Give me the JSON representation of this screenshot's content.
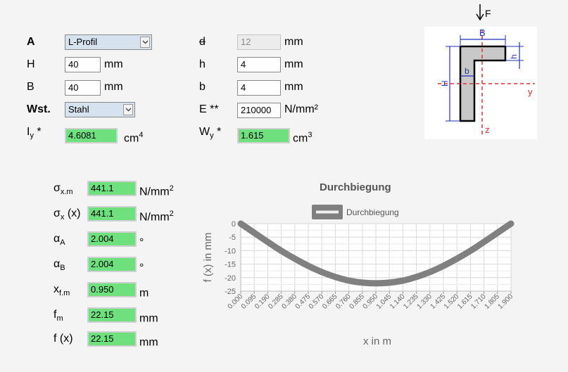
{
  "colors": {
    "green_field": "#6fe07e",
    "select_bg": "#d6e2ee",
    "curve": "#808080",
    "diagram_red": "#e03030",
    "diagram_blue": "#2030c0"
  },
  "params": {
    "A": {
      "label": "A",
      "value": "L-Profil"
    },
    "H": {
      "label": "H",
      "value": "40",
      "unit": "mm"
    },
    "B": {
      "label": "B",
      "value": "40",
      "unit": "mm"
    },
    "Wst": {
      "label": "Wst.",
      "value": "Stahl"
    },
    "Iy": {
      "label": "I",
      "sub": "y",
      "star": " *",
      "value": "4.6081",
      "unit": "cm",
      "unit_sup": "4"
    },
    "d": {
      "label": "d",
      "value": "12",
      "unit": "mm"
    },
    "h": {
      "label": "h",
      "value": "4",
      "unit": "mm"
    },
    "b": {
      "label": "b",
      "value": "4",
      "unit": "mm"
    },
    "E": {
      "label": "E **",
      "value": "210000",
      "unit": "N/mm²"
    },
    "Wy": {
      "label": "W",
      "sub": "y",
      "star": " *",
      "value": "1.615",
      "unit": "cm",
      "unit_sup": "3"
    }
  },
  "diagram": {
    "F": "F",
    "B": "B",
    "h": "h",
    "b": "b",
    "H": "H",
    "y": "y",
    "z": "z"
  },
  "results": [
    {
      "sym": "σ",
      "sub": "x.m",
      "suffix": "",
      "value": "441.1",
      "unit": "N/mm",
      "unit_sup": "2"
    },
    {
      "sym": "σ",
      "sub": "x",
      "suffix": " (x)",
      "value": "441.1",
      "unit": "N/mm",
      "unit_sup": "2"
    },
    {
      "sym": "α",
      "sub": "A",
      "suffix": "",
      "value": "2.004",
      "unit": "°",
      "unit_sup": ""
    },
    {
      "sym": "α",
      "sub": "B",
      "suffix": "",
      "value": "2.004",
      "unit": "°",
      "unit_sup": ""
    },
    {
      "sym": "x",
      "sub": "f.m",
      "suffix": "",
      "value": "0.950",
      "unit": "m",
      "unit_sup": ""
    },
    {
      "sym": "f",
      "sub": "m",
      "suffix": "",
      "value": "22.15",
      "unit": "mm",
      "unit_sup": ""
    },
    {
      "sym": "f (x)",
      "sub": "",
      "suffix": "",
      "value": "22.15",
      "unit": "mm",
      "unit_sup": ""
    }
  ],
  "chart_data": {
    "type": "line",
    "title": "Durchbiegung",
    "xlabel": "x in m",
    "ylabel": "f (x) in mm",
    "legend": {
      "position": "top",
      "entries": [
        "Durchbiegung"
      ]
    },
    "grid": true,
    "ylim": [
      -25,
      0
    ],
    "xlim": [
      0,
      1.9
    ],
    "x_ticks": [
      "0.000",
      "0.095",
      "0.190",
      "0.285",
      "0.380",
      "0.475",
      "0.570",
      "0.665",
      "0.760",
      "0.855",
      "0.950",
      "1.045",
      "1.140",
      "1.235",
      "1.330",
      "1.425",
      "1.520",
      "1.615",
      "1.710",
      "1.805",
      "1.900"
    ],
    "y_ticks": [
      "0",
      "-5",
      "-10",
      "-15",
      "-20",
      "-25"
    ],
    "series": [
      {
        "name": "Durchbiegung",
        "x": [
          0,
          0.095,
          0.19,
          0.285,
          0.38,
          0.475,
          0.57,
          0.665,
          0.76,
          0.855,
          0.95,
          1.045,
          1.14,
          1.235,
          1.33,
          1.425,
          1.52,
          1.615,
          1.71,
          1.805,
          1.9
        ],
        "y": [
          0,
          -3.4,
          -6.8,
          -10.1,
          -13.0,
          -15.7,
          -18.0,
          -19.8,
          -21.2,
          -21.9,
          -22.15,
          -21.9,
          -21.2,
          -19.8,
          -18.0,
          -15.7,
          -13.0,
          -10.1,
          -6.8,
          -3.4,
          0
        ]
      }
    ]
  }
}
